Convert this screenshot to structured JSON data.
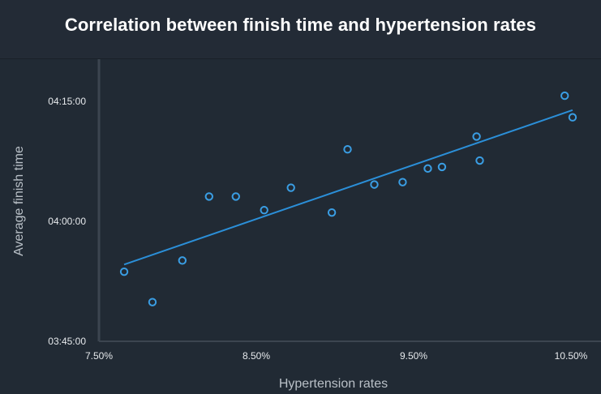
{
  "chart_data": {
    "type": "scatter",
    "title": "Correlation between finish time and hypertension rates",
    "xlabel": "Hypertension rates",
    "ylabel": "Average finish time",
    "x_ticks": [
      "7.50%",
      "8.50%",
      "9.50%",
      "10.50%"
    ],
    "x_tick_values": [
      7.5,
      8.5,
      9.5,
      10.5
    ],
    "y_ticks": [
      "04:15:00",
      "04:00:00",
      "03:45:00"
    ],
    "y_tick_values": [
      255,
      240,
      225
    ],
    "xlim": [
      7.5,
      10.75
    ],
    "ylim": [
      225,
      260
    ],
    "series": [
      {
        "points": [
          {
            "x": 7.66,
            "y": 233.7
          },
          {
            "x": 7.84,
            "y": 229.9
          },
          {
            "x": 8.03,
            "y": 235.1
          },
          {
            "x": 8.2,
            "y": 243.1
          },
          {
            "x": 8.37,
            "y": 243.1
          },
          {
            "x": 8.55,
            "y": 241.4
          },
          {
            "x": 8.72,
            "y": 244.2
          },
          {
            "x": 8.98,
            "y": 241.1
          },
          {
            "x": 9.08,
            "y": 249.0
          },
          {
            "x": 9.25,
            "y": 244.6
          },
          {
            "x": 9.43,
            "y": 244.9
          },
          {
            "x": 9.59,
            "y": 246.6
          },
          {
            "x": 9.68,
            "y": 246.8
          },
          {
            "x": 9.9,
            "y": 250.6
          },
          {
            "x": 9.92,
            "y": 247.6
          },
          {
            "x": 10.46,
            "y": 255.7
          },
          {
            "x": 10.51,
            "y": 253.0
          }
        ],
        "color": "#3a9ee4"
      }
    ],
    "trendline": {
      "x": [
        7.66,
        10.51
      ],
      "y": [
        234.6,
        253.9
      ],
      "color": "#2b8fd8"
    },
    "grid": false,
    "legend": "none"
  }
}
